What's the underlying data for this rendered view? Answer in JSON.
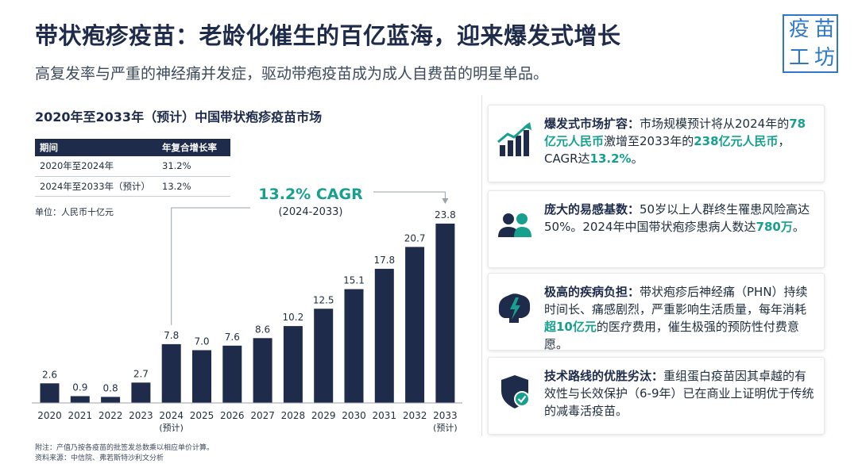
{
  "header": {
    "title": "带状疱疹疫苗：老龄化催生的百亿蓝海，迎来爆发式增长",
    "subtitle": "高复发率与严重的神经痛并发症，驱动带疱疫苗成为成人自费苗的明星单品。"
  },
  "logo": {
    "chars": [
      "疫",
      "苗",
      "工",
      "坊"
    ]
  },
  "chart_title": "2020年至2033年（预计）中国带状疱疹疫苗市场",
  "cagr_table": {
    "headers": [
      "期间",
      "年复合增长率"
    ],
    "rows": [
      {
        "period": "2020年至2024年",
        "rate": "31.2%"
      },
      {
        "period": "2024年至2033年（预计）",
        "rate": "13.2%"
      }
    ]
  },
  "unit_label": "单位：人民币十亿元",
  "chart_data": {
    "type": "bar",
    "title": "2020年至2033年（预计）中国带状疱疹疫苗市场",
    "categories": [
      "2020",
      "2021",
      "2022",
      "2023",
      "2024",
      "2025",
      "2026",
      "2027",
      "2028",
      "2029",
      "2030",
      "2031",
      "2032",
      "2033"
    ],
    "category_sublabels": {
      "2024": "(预计)",
      "2033": "(预计)"
    },
    "values": [
      2.6,
      0.9,
      0.8,
      2.7,
      7.8,
      7.0,
      7.6,
      8.6,
      10.2,
      12.5,
      15.1,
      17.8,
      20.7,
      23.8
    ],
    "value_labels": [
      "2.6",
      "0.9",
      "0.8",
      "2.7",
      "7.8",
      "7.0",
      "7.6",
      "8.6",
      "10.2",
      "12.5",
      "15.1",
      "17.8",
      "20.7",
      "23.8"
    ],
    "ylabel": "人民币十亿元",
    "ylim": [
      0,
      24
    ],
    "grid": false,
    "color": "#1e2b4a",
    "annotation": {
      "text": "13.2% CAGR",
      "subtext": "(2024-2033)",
      "from": "2024",
      "to": "2033",
      "color": "#17a08e"
    }
  },
  "notes": {
    "note1": "附注：产值乃按各疫苗的批签发总数乘以相应单价计算。",
    "note2": "资料来源：中信院、弗若斯特沙利文分析"
  },
  "cards": [
    {
      "icon": "growth-chart-icon",
      "segments": [
        {
          "t": "爆发式市场扩容：",
          "s": "bold"
        },
        {
          "t": "市场规模预计将从2024年的"
        },
        {
          "t": "78亿元人民币",
          "s": "hl"
        },
        {
          "t": "激增至2033年的"
        },
        {
          "t": "238亿元人民币",
          "s": "hl"
        },
        {
          "t": "，CAGR达"
        },
        {
          "t": "13.2%",
          "s": "hl"
        },
        {
          "t": "。"
        }
      ]
    },
    {
      "icon": "people-icon",
      "segments": [
        {
          "t": "庞大的易感基数：",
          "s": "bold"
        },
        {
          "t": "50岁以上人群终生罹患风险高达50%。2024年中国带状疱疹患病人数达"
        },
        {
          "t": "780万",
          "s": "hl"
        },
        {
          "t": "。"
        }
      ]
    },
    {
      "icon": "brain-lightning-icon",
      "segments": [
        {
          "t": "极高的疾病负担：",
          "s": "bold"
        },
        {
          "t": "带状疱疹后神经痛（PHN）持续时间长、痛感剧烈，严重影响生活质量，每年消耗"
        },
        {
          "t": "超10亿元",
          "s": "hl"
        },
        {
          "t": "的医疗费用，催生极强的预防性付费意愿。"
        }
      ]
    },
    {
      "icon": "shield-check-icon",
      "segments": [
        {
          "t": "技术路线的优胜劣汰：",
          "s": "bold"
        },
        {
          "t": "重组蛋白疫苗因其卓越的有效性与长效保护（6-9年）已在商业上证明优于传统的减毒活疫苗。"
        }
      ]
    }
  ]
}
